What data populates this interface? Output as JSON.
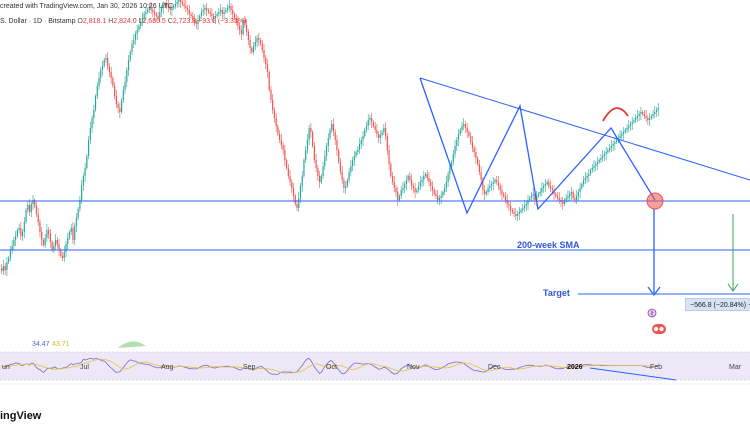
{
  "header": {
    "created_line": "created with TradingView.com, Jan 30, 2026 10:26 UTC",
    "symbol": "S. Dollar · 1D · Bitstamp",
    "ohlc": {
      "open_label": "O",
      "open": "2,818.1",
      "high_label": "H",
      "high": "2,824.0",
      "low_label": "L",
      "low": "2,680.5",
      "close_label": "C",
      "close": "2,723.8",
      "change": "−93.6 (−3.33%)"
    }
  },
  "indicators": {
    "rsi_value": "34.47",
    "rsi_ma_value": "43.71"
  },
  "annotations": {
    "sma_label": "200-week SMA",
    "target_label": "Target",
    "measure_text": "−566.8 (−20.84%) −"
  },
  "x_axis": [
    "un",
    "Jul",
    "Aug",
    "Sep",
    "Oct",
    "Nov",
    "Dec",
    "2026",
    "Feb",
    "Mar"
  ],
  "footer": {
    "brand": "ingView"
  },
  "colors": {
    "up": "#26a69a",
    "down": "#ef5350",
    "line": "#2962ff",
    "pattern": "#5b7fe0",
    "rsi": "#7b68c8",
    "rsi_ma": "#e6c040",
    "target_arrow": "#43a047"
  },
  "chart_data": {
    "type": "candlestick",
    "symbol": "S. Dollar · 1D · Bitstamp",
    "last_ohlc": {
      "open": 2818.1,
      "high": 2824.0,
      "low": 2680.5,
      "close": 2723.8
    },
    "change": -93.6,
    "change_pct": -3.33,
    "rsi": 34.47,
    "rsi_ma": 43.71,
    "target_move": -566.8,
    "target_move_pct": -20.84,
    "xlabels": [
      "un",
      "Jul",
      "Aug",
      "Sep",
      "Oct",
      "Nov",
      "Dec",
      "2026",
      "Feb",
      "Mar"
    ],
    "series": [
      {
        "closes": [
          268,
          271,
          266,
          270,
          262,
          258,
          250,
          246,
          240,
          236,
          230,
          228,
          236,
          232,
          222,
          210,
          205,
          212,
          204,
          200,
          206,
          214,
          222,
          232,
          240,
          245,
          238,
          230,
          234,
          242,
          250,
          246,
          240,
          244,
          250,
          256,
          258,
          252,
          244,
          238,
          232,
          228,
          240,
          226,
          218,
          209,
          200,
          186,
          176,
          168,
          156,
          140,
          128,
          118,
          110,
          96,
          86,
          78,
          70,
          66,
          60,
          58,
          66,
          72,
          78,
          86,
          96,
          104,
          108,
          112,
          100,
          90,
          82,
          70,
          60,
          52,
          44,
          40,
          34,
          30,
          26,
          22,
          18,
          14,
          12,
          10,
          8,
          10,
          12,
          14,
          16,
          18,
          12,
          8,
          6,
          4,
          6,
          8,
          10,
          8,
          6,
          4,
          2,
          0,
          2,
          4,
          6,
          8,
          10,
          14,
          16,
          20,
          22,
          24,
          20,
          16,
          12,
          10,
          8,
          10,
          12,
          14,
          16,
          18,
          16,
          14,
          12,
          10,
          14,
          12,
          10,
          8,
          6,
          10,
          14,
          18,
          22,
          26,
          30,
          34,
          20,
          25,
          32,
          40,
          48,
          52,
          46,
          42,
          38,
          40,
          44,
          50,
          58,
          64,
          72,
          90,
          100,
          110,
          118,
          126,
          134,
          140,
          145,
          150,
          160,
          168,
          176,
          182,
          188,
          196,
          204,
          208,
          198,
          186,
          176,
          160,
          150,
          140,
          128,
          132,
          146,
          160,
          168,
          176,
          182,
          176,
          166,
          156,
          146,
          138,
          130,
          124,
          132,
          140,
          150,
          162,
          172,
          180,
          188,
          186,
          180,
          172,
          166,
          160,
          156,
          152,
          150,
          144,
          140,
          136,
          130,
          126,
          120,
          118,
          122,
          126,
          130,
          134,
          138,
          135,
          132,
          128,
          136,
          150,
          164,
          176,
          182,
          188,
          192,
          200,
          196,
          190,
          188,
          184,
          180,
          176,
          180,
          186,
          188,
          192,
          190,
          186,
          182,
          180,
          176,
          174,
          178,
          182,
          186,
          190,
          194,
          196,
          200,
          198,
          196,
          192,
          188,
          182,
          174,
          168,
          162,
          154,
          146,
          140,
          134,
          130,
          126,
          124,
          128,
          132,
          136,
          142,
          148,
          152,
          158,
          164,
          172,
          180,
          190,
          194,
          192,
          188,
          186,
          184,
          182,
          180,
          182,
          186,
          190,
          194,
          196,
          200,
          204,
          206,
          210,
          212,
          214,
          216,
          214,
          212,
          210,
          208,
          206,
          204,
          200,
          198,
          196,
          194,
          200,
          196,
          194,
          192,
          188,
          186,
          184,
          182,
          186,
          188,
          190,
          194,
          196,
          198,
          200,
          202,
          204,
          200,
          198,
          196,
          194,
          192,
          198,
          200,
          196,
          192,
          188,
          184,
          180,
          178,
          176,
          174,
          170,
          168,
          166,
          164,
          162,
          160,
          158,
          156,
          154,
          152,
          150,
          148,
          146,
          144,
          142,
          140,
          138,
          136,
          134,
          132,
          130,
          128,
          126,
          124,
          122,
          120,
          118,
          116,
          114,
          112,
          114,
          116,
          118,
          120,
          118,
          116,
          114,
          112,
          110,
          108
        ]
      }
    ]
  }
}
